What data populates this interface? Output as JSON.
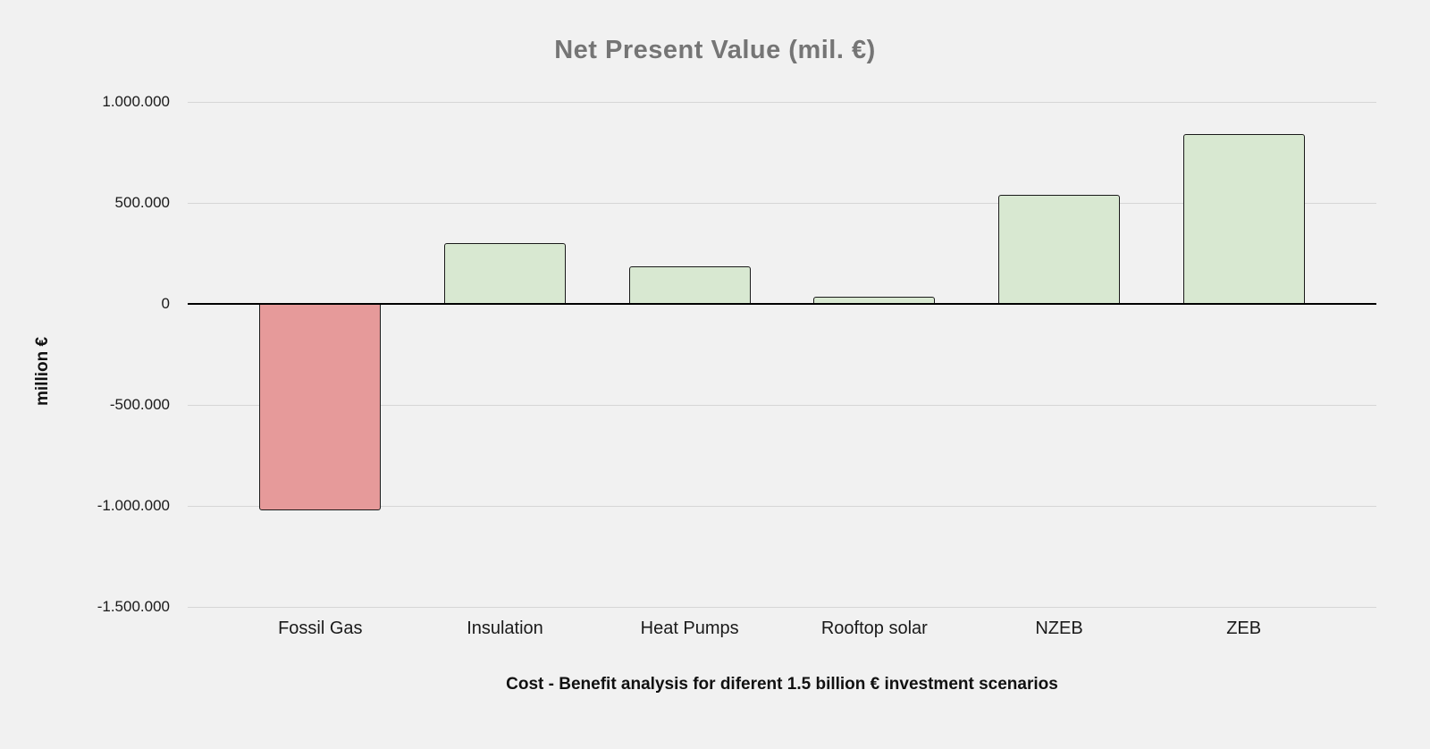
{
  "title": "Net Present Value (mil. €)",
  "axes": {
    "y_title": "million €",
    "x_title": "Cost - Benefit analysis for diferent 1.5 billion € investment scenarios"
  },
  "chart_data": {
    "type": "bar",
    "title": "Net Present Value (mil. €)",
    "xlabel": "Cost - Benefit analysis for diferent 1.5 billion € investment scenarios",
    "ylabel": "million €",
    "categories": [
      "Fossil Gas",
      "Insulation",
      "Heat Pumps",
      "Rooftop solar",
      "NZEB",
      "ZEB"
    ],
    "values": [
      -1020000,
      300000,
      185000,
      35000,
      540000,
      840000
    ],
    "ylim": [
      -1500000,
      1000000
    ],
    "yticks": [
      {
        "value": 1000000,
        "label": "1.000.000"
      },
      {
        "value": 500000,
        "label": "500.000"
      },
      {
        "value": 0,
        "label": "0"
      },
      {
        "value": -500000,
        "label": "-500.000"
      },
      {
        "value": -1000000,
        "label": "-1.000.000"
      },
      {
        "value": -1500000,
        "label": "-1.500.000"
      }
    ],
    "grid": true,
    "legend_position": "none",
    "colors": {
      "positive_fill": "#d8e8d1",
      "negative_fill": "#e69a9a",
      "bar_border": "#1a1a1a",
      "gridline": "#d6d6d6",
      "zero_line": "#000000",
      "background": "#f1f1f1",
      "title_text": "#757575"
    }
  }
}
